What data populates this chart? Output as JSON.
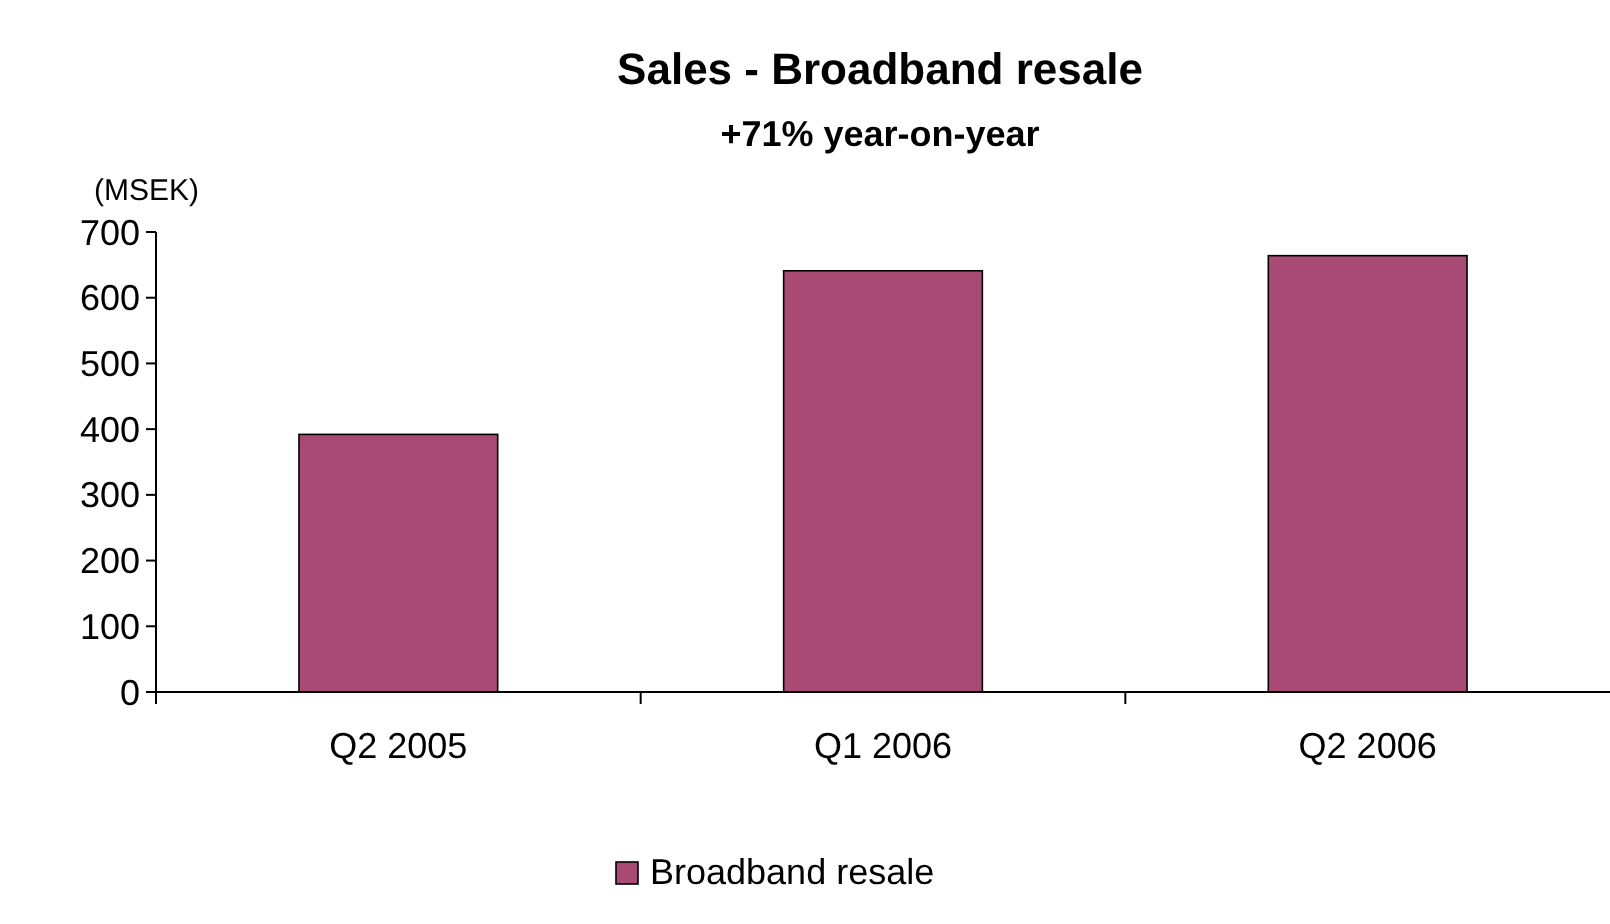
{
  "chart_data": {
    "type": "bar",
    "title": "Sales - Broadband resale",
    "subtitle": "+71% year-on-year",
    "ylabel": "(MSEK)",
    "categories": [
      "Q2 2005",
      "Q1 2006",
      "Q2 2006"
    ],
    "series": [
      {
        "name": "Broadband resale",
        "color": "#a84a74",
        "values": [
          392,
          641,
          664
        ]
      }
    ],
    "ylim": [
      0,
      700
    ],
    "yticks": [
      0,
      100,
      200,
      300,
      400,
      500,
      600,
      700
    ],
    "grid": false,
    "legend": "bottom"
  }
}
